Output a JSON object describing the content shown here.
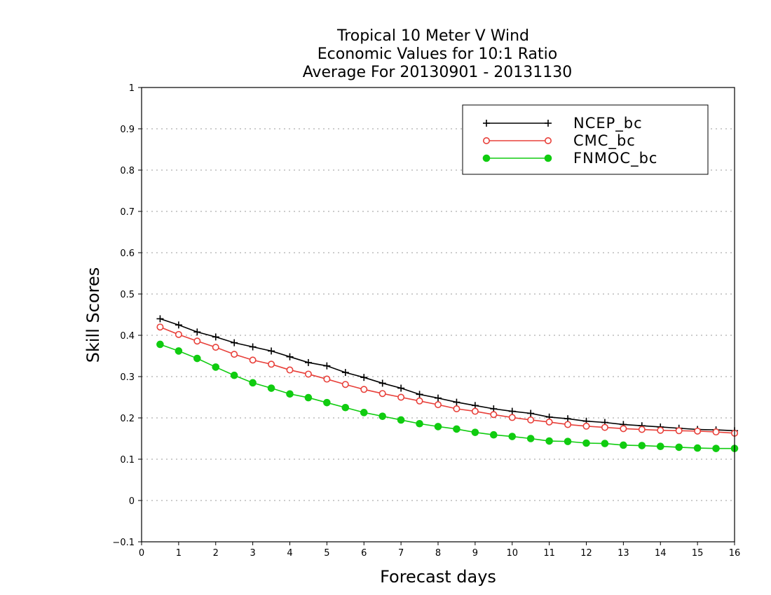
{
  "chart_data": {
    "type": "line",
    "title_lines": [
      "Tropical 10 Meter V Wind",
      "Economic Values for 10:1 Ratio",
      "Average For 20130901 - 20131130"
    ],
    "xlabel": "Forecast days",
    "ylabel": "Skill Scores",
    "xlim": [
      0,
      16
    ],
    "ylim": [
      -0.1,
      1
    ],
    "x_ticks": [
      "0",
      "1",
      "2",
      "3",
      "4",
      "5",
      "6",
      "7",
      "8",
      "9",
      "10",
      "11",
      "12",
      "13",
      "14",
      "15",
      "16"
    ],
    "y_ticks": [
      "−0.1",
      "0",
      "0.1",
      "0.2",
      "0.3",
      "0.4",
      "0.5",
      "0.6",
      "0.7",
      "0.8",
      "0.9",
      "1"
    ],
    "grid": "horizontal dotted",
    "legend_position": "top-right",
    "x": [
      0.5,
      1,
      1.5,
      2,
      2.5,
      3,
      3.5,
      4,
      4.5,
      5,
      5.5,
      6,
      6.5,
      7,
      7.5,
      8,
      8.5,
      9,
      9.5,
      10,
      10.5,
      11,
      11.5,
      12,
      12.5,
      13,
      13.5,
      14,
      14.5,
      15,
      15.5,
      16
    ],
    "series": [
      {
        "name": "NCEP_bc",
        "color": "#000000",
        "marker": "plus",
        "values": [
          0.44,
          0.425,
          0.408,
          0.396,
          0.382,
          0.372,
          0.362,
          0.348,
          0.334,
          0.326,
          0.31,
          0.298,
          0.284,
          0.272,
          0.257,
          0.248,
          0.238,
          0.23,
          0.222,
          0.216,
          0.211,
          0.202,
          0.198,
          0.192,
          0.189,
          0.184,
          0.181,
          0.178,
          0.175,
          0.172,
          0.171,
          0.169
        ]
      },
      {
        "name": "CMC_bc",
        "color": "#e8403a",
        "marker": "open-circle",
        "values": [
          0.42,
          0.402,
          0.386,
          0.371,
          0.354,
          0.34,
          0.33,
          0.316,
          0.306,
          0.294,
          0.281,
          0.269,
          0.259,
          0.25,
          0.241,
          0.232,
          0.222,
          0.216,
          0.208,
          0.201,
          0.195,
          0.19,
          0.184,
          0.18,
          0.177,
          0.174,
          0.172,
          0.17,
          0.169,
          0.168,
          0.166,
          0.163
        ]
      },
      {
        "name": "FNMOC_bc",
        "color": "#10cc10",
        "marker": "filled-circle",
        "values": [
          0.378,
          0.362,
          0.344,
          0.323,
          0.303,
          0.285,
          0.272,
          0.258,
          0.249,
          0.237,
          0.225,
          0.213,
          0.204,
          0.195,
          0.186,
          0.179,
          0.173,
          0.165,
          0.159,
          0.155,
          0.15,
          0.144,
          0.143,
          0.139,
          0.138,
          0.134,
          0.133,
          0.131,
          0.129,
          0.127,
          0.126,
          0.126
        ]
      }
    ]
  }
}
